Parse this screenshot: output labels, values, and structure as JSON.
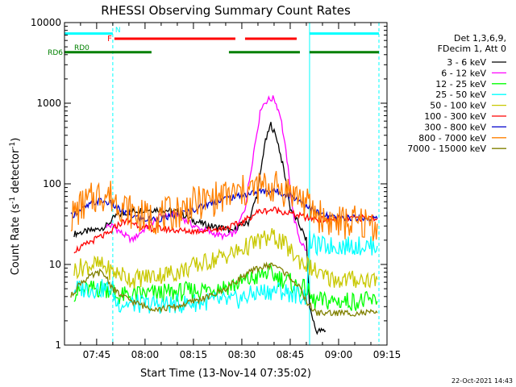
{
  "chart_data": {
    "type": "line",
    "title": "RHESSI Observing Summary Count Rates",
    "xlabel": "Start Time (13-Nov-14 07:35:02)",
    "ylabel_main": "Count Rate (s",
    "ylabel_sup1": "-1",
    "ylabel_mid": " detector",
    "ylabel_sup2": "-1",
    "ylabel_end": ")",
    "y_scale": "log",
    "xlim": [
      "07:35:02",
      "09:15:00"
    ],
    "ylim": [
      1,
      10000
    ],
    "x_ticks": [
      "07:45",
      "08:00",
      "08:15",
      "08:30",
      "08:45",
      "09:00",
      "09:15"
    ],
    "y_ticks": [
      "1",
      "10",
      "100",
      "1000",
      "10000"
    ],
    "legend_header": [
      "Det 1,3,6,9,",
      "FDecim 1, Att 0"
    ],
    "legend_placement": "right",
    "timestamp": "22-Oct-2021 14:43",
    "flag_labels": {
      "N": "N",
      "F": "F",
      "RD0": "RD0",
      "RD6": "RD6"
    },
    "flag_bars": [
      {
        "name": "N",
        "color": "#00ffff",
        "segments": [
          [
            "07:35:02",
            "07:50:00"
          ],
          [
            "08:51:00",
            "09:12:30"
          ]
        ]
      },
      {
        "name": "F",
        "color": "#ff0000",
        "segments": [
          [
            "07:50:30",
            "08:28:00"
          ],
          [
            "08:31:00",
            "08:47:00"
          ]
        ]
      },
      {
        "name": "RD0",
        "color": "#008000",
        "segments": [
          [
            "07:35:02",
            "08:02:00"
          ],
          [
            "08:26:00",
            "08:48:00"
          ],
          [
            "08:51:00",
            "09:12:30"
          ]
        ]
      }
    ],
    "vertical_markers": [
      {
        "time": "07:35:02",
        "color": "#00ffff",
        "style": "solid"
      },
      {
        "time": "07:50:00",
        "color": "#00ffff",
        "style": "dashed"
      },
      {
        "time": "08:51:00",
        "color": "#00ffff",
        "style": "solid"
      },
      {
        "time": "09:12:30",
        "color": "#00ffff",
        "style": "dashed"
      }
    ],
    "series": [
      {
        "name": "3 - 6 keV",
        "color": "#000000",
        "points": [
          [
            "07:38",
            24
          ],
          [
            "07:45",
            27
          ],
          [
            "07:48",
            30
          ],
          [
            "07:51",
            40
          ],
          [
            "07:55",
            45
          ],
          [
            "08:00",
            48
          ],
          [
            "08:05",
            48
          ],
          [
            "08:10",
            45
          ],
          [
            "08:15",
            35
          ],
          [
            "08:20",
            30
          ],
          [
            "08:25",
            28
          ],
          [
            "08:27",
            25
          ],
          [
            "08:29",
            30
          ],
          [
            "08:32",
            33
          ],
          [
            "08:35",
            80
          ],
          [
            "08:37",
            300
          ],
          [
            "08:39",
            550
          ],
          [
            "08:41",
            350
          ],
          [
            "08:43",
            150
          ],
          [
            "08:45",
            50
          ],
          [
            "08:48",
            30
          ],
          [
            "08:50",
            20
          ],
          [
            "08:51",
            3
          ],
          [
            "08:53",
            1.5
          ],
          [
            "08:56",
            1.5
          ]
        ]
      },
      {
        "name": "6 - 12 keV",
        "color": "#ff00ff",
        "points": [
          [
            "07:48",
            30
          ],
          [
            "07:50",
            30
          ],
          [
            "07:53",
            24
          ],
          [
            "07:56",
            20
          ],
          [
            "08:00",
            28
          ],
          [
            "08:05",
            40
          ],
          [
            "08:10",
            42
          ],
          [
            "08:15",
            30
          ],
          [
            "08:20",
            25
          ],
          [
            "08:25",
            22
          ],
          [
            "08:28",
            25
          ],
          [
            "08:31",
            50
          ],
          [
            "08:34",
            300
          ],
          [
            "08:36",
            900
          ],
          [
            "08:38",
            1100
          ],
          [
            "08:40",
            1150
          ],
          [
            "08:42",
            700
          ],
          [
            "08:44",
            200
          ],
          [
            "08:46",
            40
          ],
          [
            "08:48",
            20
          ],
          [
            "08:50",
            15
          ]
        ]
      },
      {
        "name": "12 - 25 keV",
        "color": "#00ff00",
        "points": [
          [
            "07:38",
            4.5
          ],
          [
            "07:45",
            5
          ],
          [
            "07:50",
            5
          ],
          [
            "07:51",
            4
          ],
          [
            "08:00",
            4.3
          ],
          [
            "08:10",
            4.5
          ],
          [
            "08:20",
            5
          ],
          [
            "08:27",
            5.5
          ],
          [
            "08:30",
            6
          ],
          [
            "08:35",
            7
          ],
          [
            "08:38",
            8
          ],
          [
            "08:41",
            7
          ],
          [
            "08:45",
            6
          ],
          [
            "08:48",
            5
          ],
          [
            "08:50",
            5
          ],
          [
            "08:52",
            3.5
          ],
          [
            "09:00",
            3.5
          ],
          [
            "09:12",
            3.5
          ]
        ]
      },
      {
        "name": "25 - 50 keV",
        "color": "#00ffff",
        "points": [
          [
            "07:38",
            5
          ],
          [
            "07:45",
            5
          ],
          [
            "07:50",
            5
          ],
          [
            "07:51",
            3.3
          ],
          [
            "08:00",
            3.2
          ],
          [
            "08:10",
            3.2
          ],
          [
            "08:20",
            3.5
          ],
          [
            "08:27",
            3.5
          ],
          [
            "08:30",
            3.8
          ],
          [
            "08:35",
            4.5
          ],
          [
            "08:41",
            4.8
          ],
          [
            "08:50",
            4
          ],
          [
            "08:51",
            20
          ],
          [
            "08:53",
            17
          ],
          [
            "09:00",
            17
          ],
          [
            "09:12",
            17
          ]
        ]
      },
      {
        "name": "50 - 100 keV",
        "color": "#c8c800",
        "points": [
          [
            "07:38",
            8.5
          ],
          [
            "07:41",
            9.5
          ],
          [
            "07:44",
            10
          ],
          [
            "07:47",
            9.5
          ],
          [
            "07:50",
            8
          ],
          [
            "07:53",
            7.5
          ],
          [
            "07:56",
            6.5
          ],
          [
            "08:00",
            7
          ],
          [
            "08:05",
            7.5
          ],
          [
            "08:10",
            8
          ],
          [
            "08:15",
            9.5
          ],
          [
            "08:20",
            11
          ],
          [
            "08:25",
            13
          ],
          [
            "08:28",
            14
          ],
          [
            "08:32",
            17
          ],
          [
            "08:36",
            20
          ],
          [
            "08:40",
            22
          ],
          [
            "08:43",
            18
          ],
          [
            "08:47",
            12
          ],
          [
            "08:50",
            10
          ],
          [
            "08:55",
            7
          ],
          [
            "09:00",
            6.5
          ],
          [
            "09:12",
            6.5
          ]
        ]
      },
      {
        "name": "100 - 300 keV",
        "color": "#ff0000",
        "points": [
          [
            "07:38",
            15
          ],
          [
            "07:40",
            16
          ],
          [
            "07:43",
            19
          ],
          [
            "07:46",
            22
          ],
          [
            "07:49",
            24
          ],
          [
            "07:51",
            30
          ],
          [
            "07:54",
            35
          ],
          [
            "07:57",
            32
          ],
          [
            "08:00",
            28
          ],
          [
            "08:04",
            28
          ],
          [
            "08:08",
            27
          ],
          [
            "08:12",
            26
          ],
          [
            "08:16",
            26
          ],
          [
            "08:20",
            27
          ],
          [
            "08:24",
            28
          ],
          [
            "08:27",
            30
          ],
          [
            "08:30",
            33
          ],
          [
            "08:35",
            45
          ],
          [
            "08:40",
            48
          ],
          [
            "08:45",
            43
          ],
          [
            "08:50",
            38
          ],
          [
            "08:55",
            36
          ],
          [
            "09:00",
            37
          ],
          [
            "09:12",
            38
          ]
        ]
      },
      {
        "name": "300 - 800 keV",
        "color": "#0000cc",
        "points": [
          [
            "07:37",
            40
          ],
          [
            "07:40",
            47
          ],
          [
            "07:43",
            55
          ],
          [
            "07:46",
            62
          ],
          [
            "07:49",
            58
          ],
          [
            "07:52",
            48
          ],
          [
            "07:56",
            40
          ],
          [
            "08:00",
            36
          ],
          [
            "08:05",
            37
          ],
          [
            "08:10",
            41
          ],
          [
            "08:15",
            48
          ],
          [
            "08:20",
            57
          ],
          [
            "08:25",
            66
          ],
          [
            "08:30",
            72
          ],
          [
            "08:35",
            80
          ],
          [
            "08:40",
            82
          ],
          [
            "08:45",
            72
          ],
          [
            "08:48",
            62
          ],
          [
            "08:52",
            47
          ],
          [
            "08:56",
            40
          ],
          [
            "09:00",
            38
          ],
          [
            "09:06",
            38
          ],
          [
            "09:12",
            37
          ]
        ]
      },
      {
        "name": "800 - 7000 keV",
        "color": "#ff8000",
        "points": [
          [
            "07:37",
            38
          ],
          [
            "07:40",
            52
          ],
          [
            "07:43",
            62
          ],
          [
            "07:46",
            75
          ],
          [
            "07:49",
            72
          ],
          [
            "07:52",
            58
          ],
          [
            "07:56",
            44
          ],
          [
            "08:00",
            38
          ],
          [
            "08:05",
            40
          ],
          [
            "08:10",
            45
          ],
          [
            "08:15",
            55
          ],
          [
            "08:20",
            63
          ],
          [
            "08:25",
            70
          ],
          [
            "08:30",
            78
          ],
          [
            "08:35",
            90
          ],
          [
            "08:40",
            92
          ],
          [
            "08:45",
            80
          ],
          [
            "08:48",
            68
          ],
          [
            "08:52",
            46
          ],
          [
            "08:56",
            36
          ],
          [
            "09:00",
            33
          ],
          [
            "09:12",
            32
          ]
        ]
      },
      {
        "name": "7000 - 15000 keV",
        "color": "#808000",
        "points": [
          [
            "07:37",
            4
          ],
          [
            "07:40",
            6
          ],
          [
            "07:43",
            7
          ],
          [
            "07:46",
            8
          ],
          [
            "07:48",
            7
          ],
          [
            "07:50",
            5
          ],
          [
            "07:53",
            4
          ],
          [
            "07:56",
            3.5
          ],
          [
            "08:00",
            3
          ],
          [
            "08:05",
            2.8
          ],
          [
            "08:10",
            3
          ],
          [
            "08:15",
            3.5
          ],
          [
            "08:20",
            4
          ],
          [
            "08:25",
            5
          ],
          [
            "08:30",
            7
          ],
          [
            "08:35",
            9
          ],
          [
            "08:40",
            10
          ],
          [
            "08:45",
            7
          ],
          [
            "08:48",
            5
          ],
          [
            "08:50",
            3.5
          ],
          [
            "08:53",
            2.5
          ],
          [
            "09:00",
            2.5
          ],
          [
            "09:12",
            2.5
          ]
        ]
      }
    ]
  }
}
